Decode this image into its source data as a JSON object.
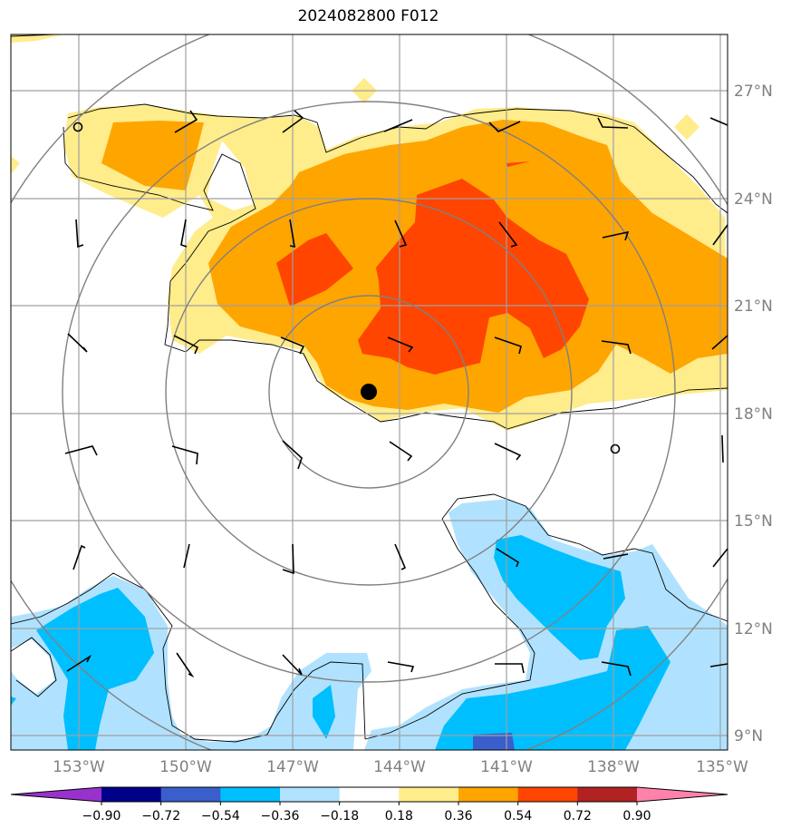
{
  "title": "2024082800 F012",
  "map": {
    "lat_labels": [
      "27°N",
      "24°N",
      "21°N",
      "18°N",
      "15°N",
      "12°N",
      "9°N"
    ],
    "lon_labels": [
      "153°W",
      "150°W",
      "147°W",
      "144°W",
      "141°W",
      "138°W",
      "135°W"
    ],
    "grid": true,
    "storm_center": {
      "lat": 18.6,
      "lon": -144.9
    }
  },
  "colorbar": {
    "levels": [
      "−0.90",
      "−0.72",
      "−0.54",
      "−0.36",
      "−0.18",
      "0.18",
      "0.36",
      "0.54",
      "0.72",
      "0.90"
    ],
    "colors": [
      "#9932cc",
      "#00008b",
      "#3a5fcd",
      "#00bfff",
      "#b0e2ff",
      "#ffffff",
      "#ffec8b",
      "#ffa500",
      "#ff4500",
      "#b22222",
      "#ff82ab"
    ],
    "extend": "both"
  },
  "colors": {
    "pos_weak": "#ffec8b",
    "pos_mid": "#ffa500",
    "pos_strong": "#ff4500",
    "neg_weak": "#b0e2ff",
    "neg_mid": "#00bfff",
    "neg_strong": "#3a5fcd",
    "grid": "#a0a0a0",
    "range_rings": "#808080"
  }
}
